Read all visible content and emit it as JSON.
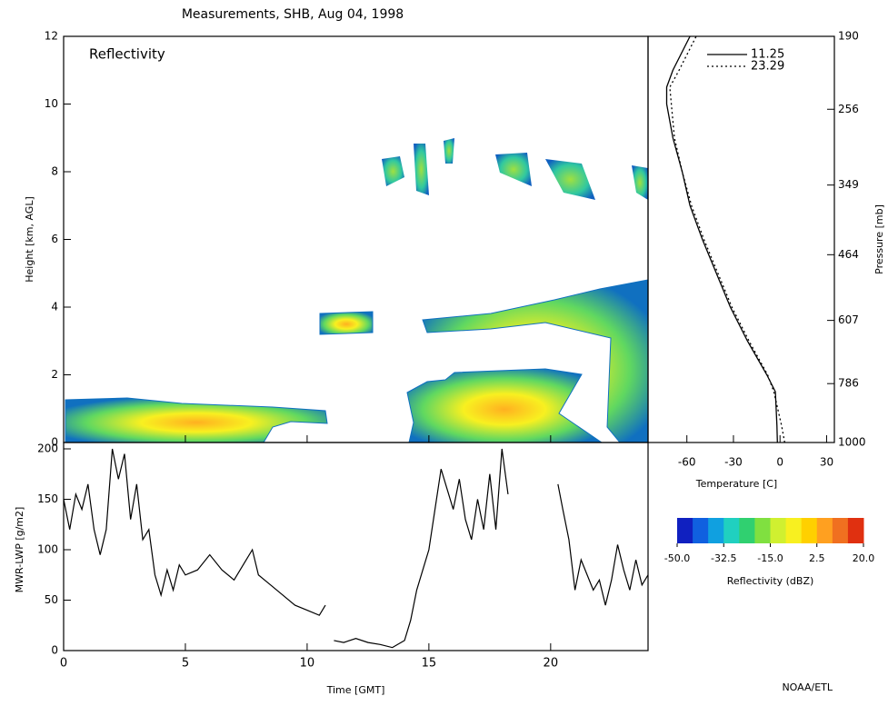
{
  "chart_data": [
    {
      "type": "heatmap",
      "title": "Measurements, SHB, Aug 04, 1998",
      "panel_label": "Reflectivity",
      "y_label": "Height [km, AGL]",
      "xlim": [
        0,
        24
      ],
      "xticks": [
        0,
        5,
        10,
        15,
        20
      ],
      "ylim": [
        0,
        12
      ],
      "yticks": [
        0,
        2,
        4,
        6,
        8,
        10,
        12
      ]
    },
    {
      "type": "profile",
      "x_label": "Temperature [C]",
      "y2_label": "Pressure [mb]",
      "xlim": [
        -85,
        35
      ],
      "xticks": [
        -60,
        -30,
        0,
        30
      ],
      "ylim": [
        0,
        12
      ],
      "y": [
        0,
        0.5,
        1,
        1.5,
        2,
        3,
        4,
        5,
        6,
        7,
        8,
        9,
        10,
        10.5,
        11,
        12
      ],
      "y2_scale": "log",
      "y2lim": [
        1000,
        190
      ],
      "y2ticks": [
        1000,
        786,
        607,
        464,
        349,
        256,
        190
      ],
      "series": [
        {
          "name": "11.25",
          "color": "#000000",
          "dash": "solid",
          "values": [
            -1.7,
            -2,
            -2.5,
            -3,
            -8.5,
            -21,
            -32,
            -41,
            -50,
            -58,
            -63,
            -69,
            -73,
            -73,
            -69,
            -58
          ]
        },
        {
          "name": "23.29",
          "color": "#000000",
          "dash": "dotted",
          "values": [
            3,
            1,
            -1.5,
            -4,
            -8,
            -20,
            -31,
            -40,
            -49,
            -57,
            -63,
            -68,
            -70,
            -71,
            -65,
            -54
          ]
        }
      ]
    },
    {
      "type": "line",
      "x_label": "Time [GMT]",
      "y_label": "MWR-LWP [g/m2]",
      "xlim": [
        0,
        24
      ],
      "xticks": [
        0,
        5,
        10,
        15,
        20
      ],
      "ylim": [
        0,
        200
      ],
      "yticks": [
        0,
        50,
        100,
        150,
        200
      ],
      "x": [
        0,
        0.25,
        0.5,
        0.75,
        1,
        1.25,
        1.5,
        1.75,
        2,
        2.25,
        2.5,
        2.75,
        3,
        3.25,
        3.5,
        3.75,
        4,
        4.25,
        4.5,
        4.75,
        5,
        5.5,
        6,
        6.5,
        7,
        7.5,
        7.75,
        8,
        8.5,
        9,
        9.5,
        10,
        10.5,
        10.75,
        11,
        11.1,
        11.5,
        12,
        12.5,
        13,
        13.5,
        14,
        14.25,
        14.5,
        14.75,
        15,
        15.25,
        15.5,
        15.75,
        16,
        16.25,
        16.5,
        16.75,
        17,
        17.25,
        17.5,
        17.75,
        18,
        18.25,
        18.5,
        20.3,
        20.5,
        20.75,
        21,
        21.25,
        21.5,
        21.75,
        22,
        22.25,
        22.5,
        22.75,
        23,
        23.25,
        23.5,
        23.75,
        24
      ],
      "series": [
        {
          "color": "#000000",
          "values": [
            150,
            120,
            155,
            140,
            165,
            120,
            95,
            120,
            200,
            170,
            195,
            130,
            165,
            110,
            120,
            75,
            55,
            80,
            60,
            85,
            75,
            80,
            95,
            80,
            70,
            90,
            100,
            75,
            65,
            55,
            45,
            40,
            35,
            45,
            null,
            10,
            8,
            12,
            8,
            6,
            3,
            10,
            30,
            60,
            80,
            100,
            140,
            180,
            160,
            140,
            170,
            130,
            110,
            150,
            120,
            175,
            120,
            200,
            155,
            null,
            165,
            140,
            110,
            60,
            90,
            75,
            60,
            70,
            45,
            70,
            105,
            80,
            60,
            90,
            65,
            75
          ]
        }
      ]
    },
    {
      "type": "colorbar",
      "label": "Reflectivity (dBZ)",
      "lim": [
        -50,
        20
      ],
      "ticks": [
        {
          "value": -50,
          "label": "-50.0"
        },
        {
          "value": -32.5,
          "label": "-32.5"
        },
        {
          "value": -15,
          "label": "-15.0"
        },
        {
          "value": 2.5,
          "label": "2.5"
        },
        {
          "value": 20,
          "label": "20.0"
        }
      ],
      "colors": [
        "#1020c0",
        "#1060e0",
        "#10a0e0",
        "#20d0c0",
        "#30d070",
        "#80e040",
        "#d0f030",
        "#f8f020",
        "#ffd000",
        "#ffa020",
        "#f07020",
        "#e03010"
      ]
    }
  ],
  "credit": "NOAA/ETL"
}
